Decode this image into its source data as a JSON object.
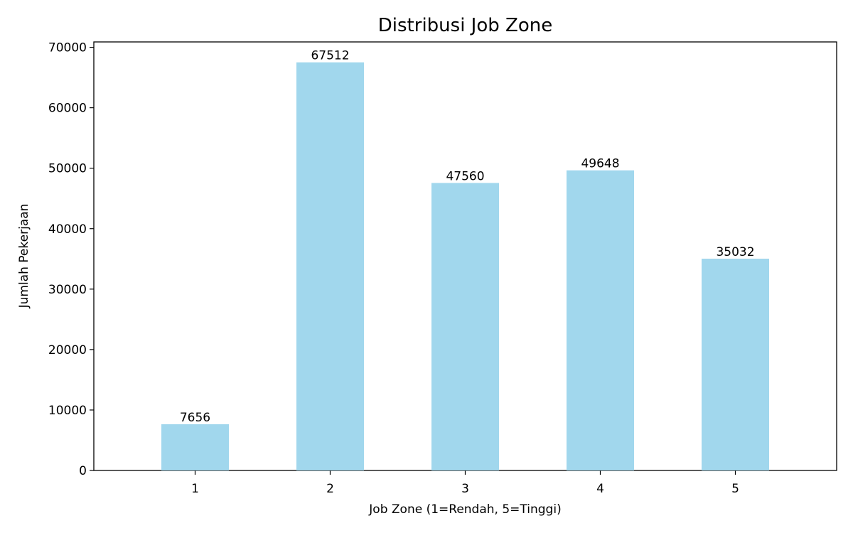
{
  "chart_data": {
    "type": "bar",
    "title": "Distribusi Job Zone",
    "xlabel": "Job Zone (1=Rendah, 5=Tinggi)",
    "ylabel": "Jumlah Pekerjaan",
    "categories": [
      "1",
      "2",
      "3",
      "4",
      "5"
    ],
    "values": [
      7656,
      67512,
      47560,
      49648,
      35032
    ],
    "data_labels": [
      "7656",
      "67512",
      "47560",
      "49648",
      "35032"
    ],
    "yticks": [
      0,
      10000,
      20000,
      30000,
      40000,
      50000,
      60000,
      70000
    ],
    "ylim": [
      0,
      70890
    ],
    "bar_color": "#a1d7ed",
    "grid": false,
    "legend": "none"
  }
}
